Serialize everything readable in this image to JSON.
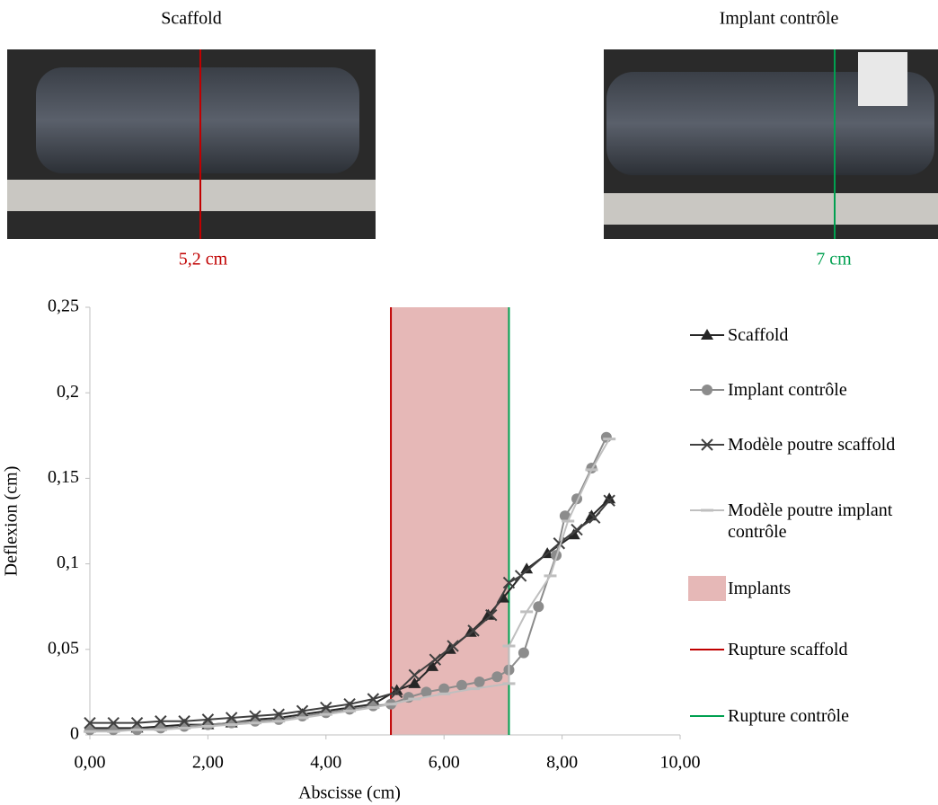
{
  "photos": [
    {
      "title": "Scaffold",
      "label": "5,2 cm"
    },
    {
      "title": "Implant contrôle",
      "label": "7 cm"
    }
  ],
  "chart_data": {
    "type": "line",
    "x_label": "Abscisse (cm)",
    "y_label": "Deflexion (cm)",
    "xlim": [
      0,
      10
    ],
    "xticks": [
      {
        "value": 0,
        "label": "0,00"
      },
      {
        "value": 2,
        "label": "2,00"
      },
      {
        "value": 4,
        "label": "4,00"
      },
      {
        "value": 6,
        "label": "6,00"
      },
      {
        "value": 8,
        "label": "8,00"
      },
      {
        "value": 10,
        "label": "10,00"
      }
    ],
    "ylim": [
      0,
      0.25
    ],
    "yticks": [
      0,
      {
        "value": 0.05,
        "label": "0,05"
      },
      {
        "value": 0.1,
        "label": "0,1"
      },
      {
        "value": 0.15,
        "label": "0,15"
      },
      {
        "value": 0.2,
        "label": "0,2"
      },
      {
        "value": 0.25,
        "label": "0,25"
      }
    ],
    "spans": [
      {
        "name": "Implants",
        "x": [
          5.1,
          7.1
        ],
        "color": "#e6b8b7"
      }
    ],
    "vlines": [
      {
        "name": "Rupture scaffold",
        "x": 5.1,
        "color": "#c00000"
      },
      {
        "name": "Rupture contrôle",
        "x": 7.1,
        "color": "#00a050"
      }
    ],
    "series": [
      {
        "name": "Scaffold",
        "color": "#262626",
        "marker": "triangle",
        "x": [
          0,
          0.4,
          0.8,
          1.2,
          1.6,
          2.0,
          2.4,
          2.8,
          3.2,
          3.6,
          4.0,
          4.4,
          4.8,
          5.2,
          5.5,
          5.8,
          6.1,
          6.45,
          6.75,
          7.0,
          7.4,
          7.75,
          8.2,
          8.5,
          8.8
        ],
        "values": [
          0.004,
          0.004,
          0.004,
          0.005,
          0.006,
          0.006,
          0.007,
          0.009,
          0.01,
          0.012,
          0.014,
          0.016,
          0.018,
          0.026,
          0.03,
          0.04,
          0.05,
          0.06,
          0.07,
          0.08,
          0.097,
          0.106,
          0.117,
          0.128,
          0.138
        ]
      },
      {
        "name": "Implant contrôle",
        "color": "#8c8c8c",
        "marker": "circle",
        "x": [
          0,
          0.4,
          0.8,
          1.2,
          1.6,
          2.0,
          2.4,
          2.8,
          3.2,
          3.6,
          4.0,
          4.4,
          4.8,
          5.1,
          5.4,
          5.7,
          6.0,
          6.3,
          6.6,
          6.9,
          7.1,
          7.35,
          7.6,
          7.9,
          8.05,
          8.25,
          8.5,
          8.75
        ],
        "values": [
          0.003,
          0.003,
          0.003,
          0.004,
          0.005,
          0.006,
          0.007,
          0.008,
          0.009,
          0.011,
          0.013,
          0.015,
          0.017,
          0.018,
          0.022,
          0.025,
          0.027,
          0.029,
          0.031,
          0.034,
          0.038,
          0.048,
          0.075,
          0.105,
          0.128,
          0.138,
          0.156,
          0.174
        ]
      },
      {
        "name": "Modèle poutre scaffold",
        "color": "#404040",
        "marker": "x",
        "x": [
          0,
          0.4,
          0.8,
          1.2,
          1.6,
          2.0,
          2.4,
          2.8,
          3.2,
          3.6,
          4.0,
          4.4,
          4.8,
          5.2,
          5.5,
          5.85,
          6.15,
          6.5,
          6.8,
          7.1,
          7.3,
          7.95,
          8.25,
          8.55,
          8.8
        ],
        "values": [
          0.007,
          0.007,
          0.007,
          0.008,
          0.008,
          0.009,
          0.01,
          0.011,
          0.012,
          0.014,
          0.016,
          0.018,
          0.021,
          0.025,
          0.035,
          0.044,
          0.052,
          0.061,
          0.07,
          0.089,
          0.093,
          0.112,
          0.12,
          0.127,
          0.137
        ]
      },
      {
        "name": "Modèle poutre implant contrôle",
        "color": "#bfbfbf",
        "marker": "dash",
        "x": [
          0,
          0.4,
          0.8,
          1.2,
          1.6,
          2.0,
          2.4,
          2.8,
          3.2,
          3.6,
          4.0,
          4.4,
          4.8,
          5.1,
          5.5,
          6.0,
          6.5,
          7.1,
          7.1,
          7.4,
          7.8,
          8.1,
          8.5,
          8.8
        ],
        "values": [
          0.002,
          0.002,
          0.003,
          0.003,
          0.004,
          0.005,
          0.006,
          0.007,
          0.008,
          0.01,
          0.012,
          0.014,
          0.016,
          0.018,
          0.021,
          0.024,
          0.027,
          0.03,
          0.052,
          0.072,
          0.093,
          0.125,
          0.155,
          0.173
        ]
      }
    ]
  }
}
